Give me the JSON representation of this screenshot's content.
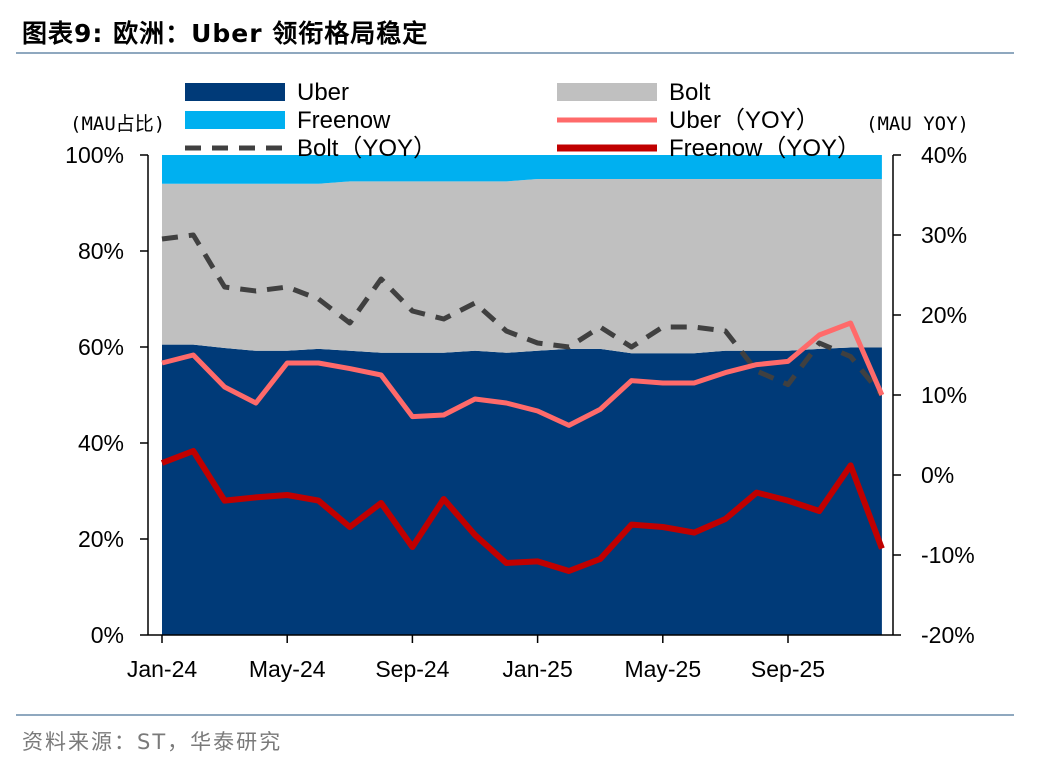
{
  "title": "图表9:  欧洲：Uber 领衔格局稳定",
  "source": "资料来源：ST，华泰研究",
  "colors": {
    "uber_share": "#003a78",
    "bolt_share": "#c0c0c0",
    "freenow_share": "#00b0f0",
    "uber_yoy": "#ff6a6a",
    "bolt_yoy": "#404040",
    "freenow_yoy": "#c00000"
  },
  "chart_data": {
    "type": "area",
    "left_axis_label": "(MAU占比)",
    "right_axis_label": "(MAU YOY)",
    "x": [
      "Jan-24",
      "Feb-24",
      "Mar-24",
      "Apr-24",
      "May-24",
      "Jun-24",
      "Jul-24",
      "Aug-24",
      "Sep-24",
      "Oct-24",
      "Nov-24",
      "Dec-24",
      "Jan-25",
      "Feb-25",
      "Mar-25",
      "Apr-25",
      "May-25",
      "Jun-25",
      "Jul-25",
      "Aug-25",
      "Sep-25",
      "Oct-25",
      "Nov-25",
      "Dec-25"
    ],
    "x_tick_labels": [
      "Jan-24",
      "May-24",
      "Sep-24",
      "Jan-25",
      "May-25",
      "Sep-25"
    ],
    "left_ylim": [
      0,
      100
    ],
    "left_ticks": [
      "0%",
      "20%",
      "40%",
      "60%",
      "80%",
      "100%"
    ],
    "right_ylim": [
      -20,
      40
    ],
    "right_ticks": [
      "-20%",
      "-10%",
      "0%",
      "10%",
      "20%",
      "30%",
      "40%"
    ],
    "legend": [
      "Uber",
      "Bolt",
      "Freenow",
      "Uber（YOY）",
      "Bolt（YOY）",
      "Freenow（YOY）"
    ],
    "series": [
      {
        "name": "Uber",
        "axis": "left",
        "kind": "area",
        "values": [
          60.5,
          60.5,
          59.8,
          59.2,
          59.2,
          59.6,
          59.2,
          58.8,
          58.8,
          58.8,
          59.2,
          58.8,
          59.2,
          59.6,
          59.6,
          58.7,
          58.7,
          58.7,
          59.2,
          59.2,
          59.2,
          59.6,
          59.9,
          59.9
        ]
      },
      {
        "name": "Bolt",
        "axis": "left",
        "kind": "area",
        "values": [
          33.5,
          33.5,
          34.2,
          34.8,
          34.8,
          34.4,
          35.3,
          35.7,
          35.7,
          35.7,
          35.3,
          35.7,
          35.8,
          35.4,
          35.4,
          36.3,
          36.3,
          36.3,
          35.8,
          35.8,
          35.8,
          35.4,
          35.1,
          35.1
        ]
      },
      {
        "name": "Freenow",
        "axis": "left",
        "kind": "area",
        "values": [
          6.0,
          6.0,
          6.0,
          6.0,
          6.0,
          6.0,
          5.5,
          5.5,
          5.5,
          5.5,
          5.5,
          5.5,
          5.0,
          5.0,
          5.0,
          5.0,
          5.0,
          5.0,
          5.0,
          5.0,
          5.0,
          5.0,
          5.0,
          5.0
        ]
      },
      {
        "name": "Uber（YOY）",
        "axis": "right",
        "kind": "line",
        "values": [
          14,
          15,
          11,
          9,
          14,
          14,
          13.3,
          12.5,
          7.3,
          7.5,
          9.5,
          9,
          8,
          6.2,
          8.2,
          11.8,
          11.5,
          11.5,
          12.8,
          13.8,
          14.2,
          17.5,
          19,
          10
        ]
      },
      {
        "name": "Bolt（YOY）",
        "axis": "right",
        "kind": "dashed-line",
        "values": [
          29.5,
          30,
          23.5,
          23,
          23.5,
          22,
          19,
          24.5,
          20.5,
          19.5,
          21.5,
          18,
          16.5,
          16,
          18.5,
          16,
          18.5,
          18.5,
          18,
          13,
          11.3,
          16.5,
          14.8,
          10
        ]
      },
      {
        "name": "Freenow（YOY）",
        "axis": "right",
        "kind": "line",
        "values": [
          1.5,
          3,
          -3.2,
          -2.8,
          -2.5,
          -3.2,
          -6.5,
          -3.5,
          -9,
          -3,
          -7.5,
          -11,
          -10.8,
          -12,
          -10.5,
          -6.2,
          -6.5,
          -7.2,
          -5.5,
          -2.2,
          -3.2,
          -4.5,
          1.2,
          -9.2
        ]
      }
    ]
  }
}
